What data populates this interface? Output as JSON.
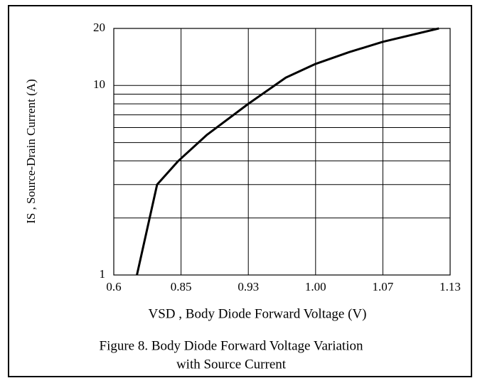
{
  "chart_data": {
    "type": "line",
    "title": [
      "Figure 8. Body Diode Forward Voltage Variation",
      "with Source Current"
    ],
    "x_label": "VSD , Body Diode Forward Voltage (V)",
    "y_label": "IS , Source-Drain Current (A)",
    "x": [
      0.686,
      0.761,
      0.84,
      0.881,
      0.93,
      0.969,
      1.0,
      1.035,
      1.07,
      1.12
    ],
    "series": [
      {
        "name": "IS",
        "color": "#000000",
        "values": [
          1,
          3,
          4,
          5.5,
          8,
          11,
          13,
          15,
          17,
          20
        ]
      }
    ],
    "xlim": [
      0.6,
      1.13
    ],
    "xticks": [
      0.6,
      0.85,
      0.93,
      {
        "value": 1.0,
        "label": "1.00"
      },
      1.07,
      1.13
    ],
    "ylim": [
      1,
      20
    ],
    "yticks": [
      1,
      10,
      20
    ],
    "minor_yticks": [
      2,
      3,
      4,
      5,
      6,
      7,
      8,
      9
    ],
    "y_scale": "log",
    "grid": true
  }
}
